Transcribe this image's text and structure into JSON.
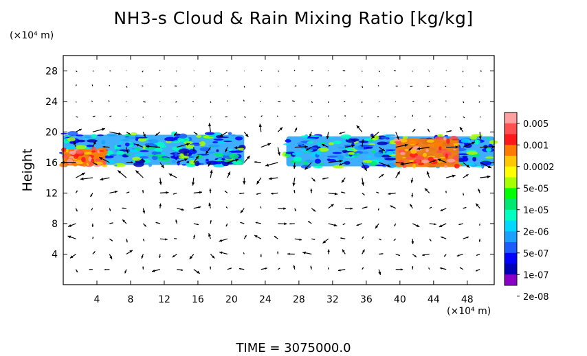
{
  "title": "NH3-s Cloud & Rain Mixing Ratio [kg/kg]",
  "y_unit": "(×10⁴ m)",
  "x_unit": "(×10⁴ m)",
  "ylabel": "Height",
  "time_label": "TIME  =  3075000.0",
  "chart_data": {
    "type": "heatmap",
    "title": "NH3-s Cloud & Rain Mixing Ratio [kg/kg]",
    "xlabel": "",
    "ylabel": "Height",
    "xlim": [
      0,
      51.2
    ],
    "ylim": [
      0,
      30
    ],
    "x_ticks": [
      4,
      8,
      12,
      16,
      20,
      24,
      28,
      32,
      36,
      40,
      44,
      48
    ],
    "y_ticks": [
      4,
      8,
      12,
      16,
      20,
      24,
      28
    ],
    "colorbar": {
      "labels": [
        "0.005",
        "0.001",
        "0.0002",
        "5e-05",
        "1e-05",
        "2e-06",
        "5e-07",
        "1e-07",
        "2e-08"
      ],
      "colors": [
        "#ffa0a0",
        "#ff5050",
        "#ff1818",
        "#ff7a00",
        "#ffc800",
        "#ffff00",
        "#a8ff00",
        "#00ff00",
        "#00e870",
        "#00ffc0",
        "#00d8ff",
        "#1ca0ff",
        "#1b5cff",
        "#0000ff",
        "#0000b8",
        "#8b00c8"
      ]
    },
    "cloud_regions": [
      {
        "x": [
          0,
          21.5
        ],
        "y": [
          15.6,
          19.8
        ],
        "level": "1e-07 to 5e-05"
      },
      {
        "x": [
          0,
          5
        ],
        "y": [
          15.6,
          17.8
        ],
        "level": "0.0002 to 0.001"
      },
      {
        "x": [
          26.5,
          51.2
        ],
        "y": [
          15.4,
          19.6
        ],
        "level": "1e-07 to 5e-05"
      },
      {
        "x": [
          39.5,
          47
        ],
        "y": [
          15.4,
          19.2
        ],
        "level": "0.0002 to 0.005"
      }
    ],
    "grid": false,
    "legend": "right"
  }
}
